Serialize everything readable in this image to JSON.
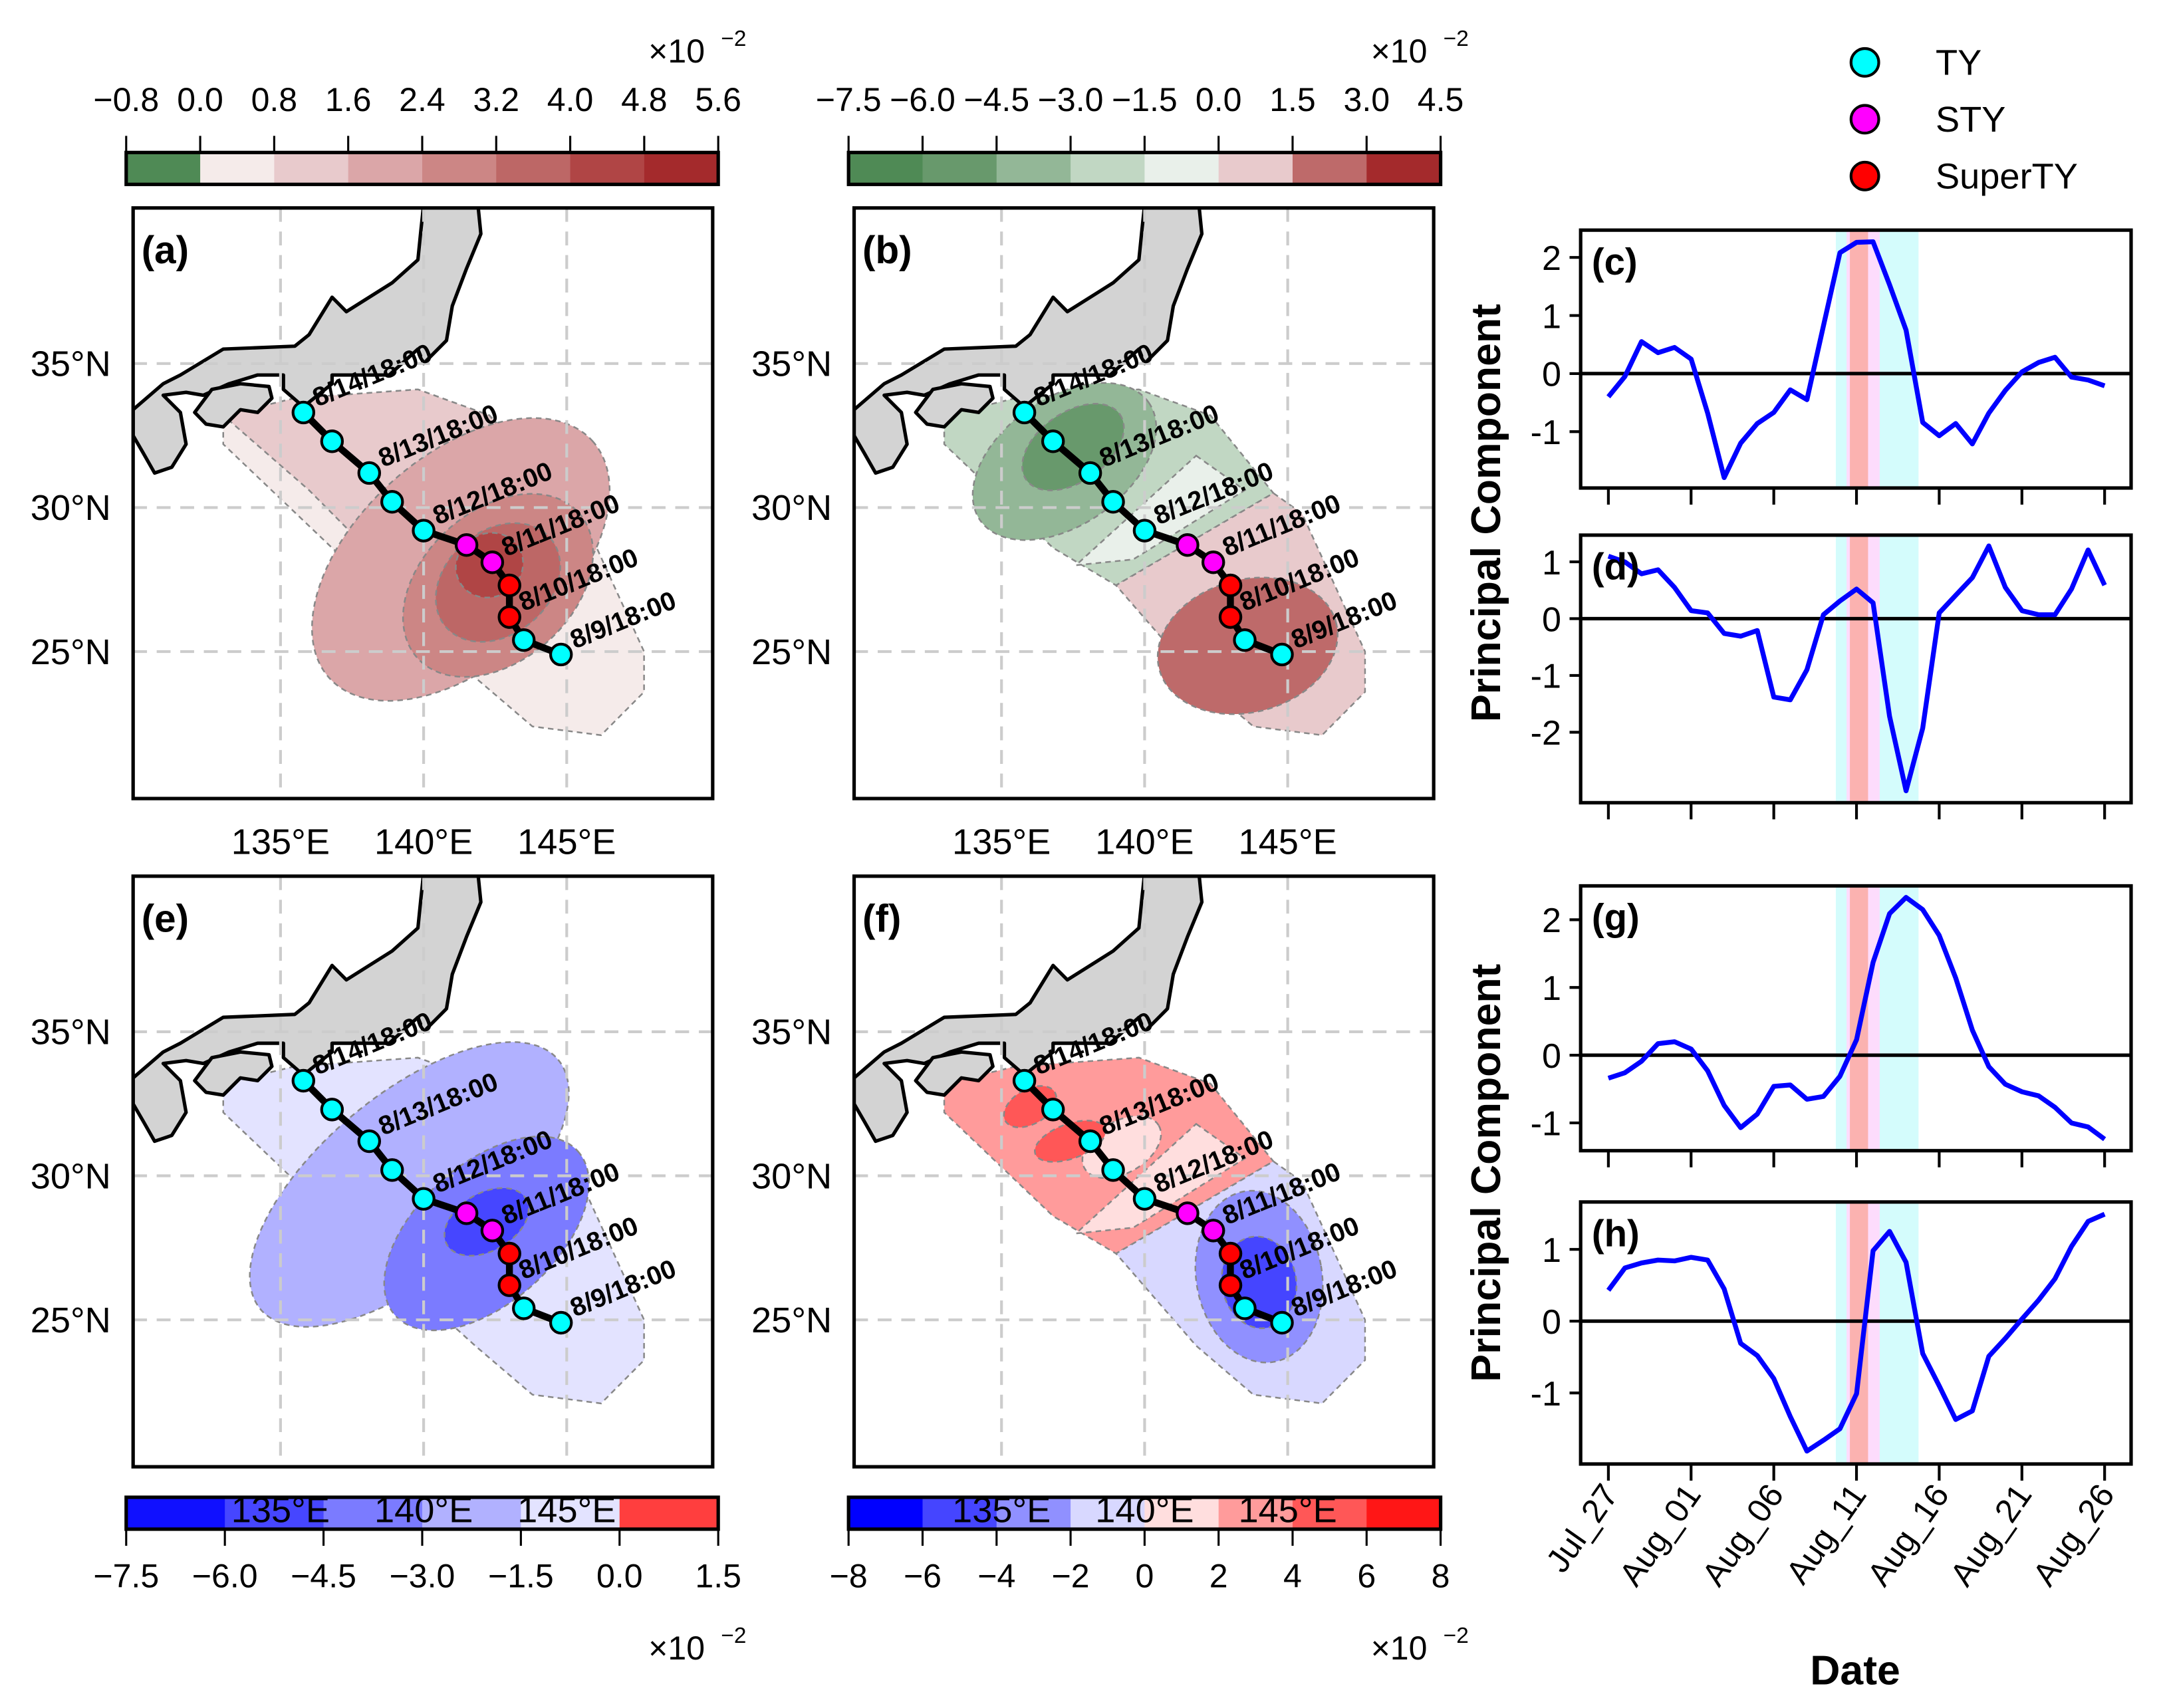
{
  "colorbars": [
    {
      "id": "cb-a",
      "ticks": [
        "−0.8",
        "0.0",
        "0.8",
        "1.6",
        "2.4",
        "3.2",
        "4.0",
        "4.8",
        "5.6"
      ],
      "colors": [
        "#4f8a55",
        "#f5ebea",
        "#e8cacc",
        "#dba6a8",
        "#cc8685",
        "#bd6766",
        "#b04545",
        "#a42a2c"
      ],
      "multiplier": "×10",
      "exponent": "−2",
      "position": "top"
    },
    {
      "id": "cb-b",
      "ticks": [
        "−7.5",
        "−6.0",
        "−4.5",
        "−3.0",
        "−1.5",
        "0.0",
        "1.5",
        "3.0",
        "4.5"
      ],
      "colors": [
        "#4f8a55",
        "#68996c",
        "#93b797",
        "#c1d7c3",
        "#e9f0ea",
        "#e8cacc",
        "#be6a6a",
        "#a42a2c"
      ],
      "multiplier": "×10",
      "exponent": "−2",
      "position": "top"
    },
    {
      "id": "cb-e",
      "ticks": [
        "−7.5",
        "−6.0",
        "−4.5",
        "−3.0",
        "−1.5",
        "0.0",
        "1.5"
      ],
      "colors": [
        "#1010ff",
        "#4646ff",
        "#7b7bff",
        "#b1b1ff",
        "#e3e3ff",
        "#ff3e3e"
      ],
      "multiplier": "×10",
      "exponent": "−2",
      "position": "bottom"
    },
    {
      "id": "cb-f",
      "ticks": [
        "−8",
        "−6",
        "−4",
        "−2",
        "0",
        "2",
        "4",
        "6",
        "8"
      ],
      "colors": [
        "#0000ff",
        "#4545ff",
        "#9090ff",
        "#d8d8ff",
        "#ffdede",
        "#ff9b9b",
        "#ff5757",
        "#ff1616"
      ],
      "multiplier": "×10",
      "exponent": "−2",
      "position": "bottom"
    }
  ],
  "maps": [
    {
      "panel": "(a)",
      "field": "a"
    },
    {
      "panel": "(b)",
      "field": "b"
    },
    {
      "panel": "(e)",
      "field": "e"
    },
    {
      "panel": "(f)",
      "field": "f"
    }
  ],
  "map_axes": {
    "lon_ticks": [
      {
        "value": 135,
        "label": "135°E"
      },
      {
        "value": 140,
        "label": "140°E"
      },
      {
        "value": 145,
        "label": "145°E"
      }
    ],
    "lat_ticks": [
      {
        "value": 35,
        "label": "35°N"
      },
      {
        "value": 30,
        "label": "30°N"
      },
      {
        "value": 25,
        "label": "25°N"
      }
    ],
    "lon_range": [
      129.85,
      150.1
    ],
    "lat_range": [
      19.9,
      40.4
    ],
    "grid": true,
    "land_color": "#d3d3d3"
  },
  "track": {
    "points": [
      {
        "lon": 144.8,
        "lat": 24.9,
        "category": "TY",
        "label": "8/9/18:00"
      },
      {
        "lon": 143.5,
        "lat": 25.4,
        "category": "TY"
      },
      {
        "lon": 143.0,
        "lat": 26.2,
        "category": "SuperTY",
        "label": "8/10/18:00"
      },
      {
        "lon": 143.0,
        "lat": 27.3,
        "category": "SuperTY"
      },
      {
        "lon": 142.4,
        "lat": 28.1,
        "category": "STY",
        "label": "8/11/18:00"
      },
      {
        "lon": 141.5,
        "lat": 28.7,
        "category": "STY"
      },
      {
        "lon": 140.0,
        "lat": 29.2,
        "category": "TY",
        "label": "8/12/18:00"
      },
      {
        "lon": 138.9,
        "lat": 30.2,
        "category": "TY"
      },
      {
        "lon": 138.1,
        "lat": 31.2,
        "category": "TY",
        "label": "8/13/18:00"
      },
      {
        "lon": 136.8,
        "lat": 32.3,
        "category": "TY"
      },
      {
        "lon": 135.8,
        "lat": 33.3,
        "category": "TY",
        "label": "8/14/18:00"
      }
    ],
    "category_colors": {
      "TY": "#00ffff",
      "STY": "#ff00ff",
      "SuperTY": "#ff0000"
    }
  },
  "legend": {
    "position": "top-right",
    "items": [
      {
        "label": "TY",
        "key": "TY"
      },
      {
        "label": "STY",
        "key": "STY"
      },
      {
        "label": "SuperTY",
        "key": "SuperTY"
      }
    ]
  },
  "chart_data": [
    {
      "type": "line",
      "panel": "(c)",
      "ylabel": "Principal Component",
      "xlabel": "Date",
      "ylim": [
        -1.97,
        2.47
      ],
      "yticks": [
        -1,
        0,
        1,
        2
      ],
      "values": [
        -0.4,
        -0.05,
        0.55,
        0.36,
        0.45,
        0.25,
        -0.68,
        -1.79,
        -1.2,
        -0.86,
        -0.67,
        -0.28,
        -0.45,
        0.82,
        2.08,
        2.26,
        2.27,
        1.53,
        0.75,
        -0.84,
        -1.07,
        -0.86,
        -1.21,
        -0.68,
        -0.29,
        0.03,
        0.19,
        0.28,
        -0.06,
        -0.11,
        -0.21
      ]
    },
    {
      "type": "line",
      "panel": "(d)",
      "ylim": [
        -3.24,
        1.47
      ],
      "yticks": [
        -2,
        -1,
        0,
        1
      ],
      "values": [
        1.1,
        1.0,
        0.79,
        0.86,
        0.55,
        0.14,
        0.1,
        -0.26,
        -0.31,
        -0.21,
        -1.38,
        -1.43,
        -0.9,
        0.07,
        0.31,
        0.52,
        0.28,
        -1.72,
        -3.03,
        -1.93,
        0.1,
        0.41,
        0.72,
        1.28,
        0.55,
        0.14,
        0.07,
        0.07,
        0.52,
        1.21,
        0.59
      ]
    },
    {
      "type": "line",
      "panel": "(g)",
      "ylabel": "Principal Component",
      "ylim": [
        -1.41,
        2.5
      ],
      "yticks": [
        -1,
        0,
        1,
        2
      ],
      "values": [
        -0.34,
        -0.26,
        -0.09,
        0.17,
        0.2,
        0.09,
        -0.23,
        -0.74,
        -1.07,
        -0.87,
        -0.46,
        -0.44,
        -0.65,
        -0.61,
        -0.31,
        0.23,
        1.37,
        2.09,
        2.33,
        2.15,
        1.77,
        1.14,
        0.37,
        -0.17,
        -0.43,
        -0.54,
        -0.6,
        -0.77,
        -1.0,
        -1.06,
        -1.24
      ]
    },
    {
      "type": "line",
      "panel": "(h)",
      "ylim": [
        -1.99,
        1.66
      ],
      "yticks": [
        -1,
        0,
        1
      ],
      "values": [
        0.43,
        0.74,
        0.81,
        0.85,
        0.84,
        0.89,
        0.85,
        0.45,
        -0.31,
        -0.48,
        -0.8,
        -1.33,
        -1.81,
        -1.66,
        -1.5,
        -1.01,
        0.98,
        1.25,
        0.82,
        -0.45,
        -0.9,
        -1.37,
        -1.25,
        -0.49,
        -0.24,
        0.03,
        0.29,
        0.59,
        1.04,
        1.39,
        1.49
      ]
    }
  ],
  "time_axis": {
    "dates_start": "Jul_27",
    "step_days": 1,
    "tick_labels": [
      "Jul_27",
      "Aug_01",
      "Aug_06",
      "Aug_11",
      "Aug_16",
      "Aug_21",
      "Aug_26"
    ],
    "xlabel": "Date",
    "ylabel": "Principal Component",
    "line_color": "#0000ff",
    "shading": [
      {
        "category": "TY",
        "start_day": 13.75,
        "end_day": 18.75,
        "color": "#d4fcfc"
      },
      {
        "category": "STY",
        "start_day": 14.4,
        "end_day": 16.4,
        "color": "#fddcfc"
      },
      {
        "category": "SuperTY",
        "start_day": 14.6,
        "end_day": 15.7,
        "color": "#fbb2b0"
      }
    ]
  }
}
